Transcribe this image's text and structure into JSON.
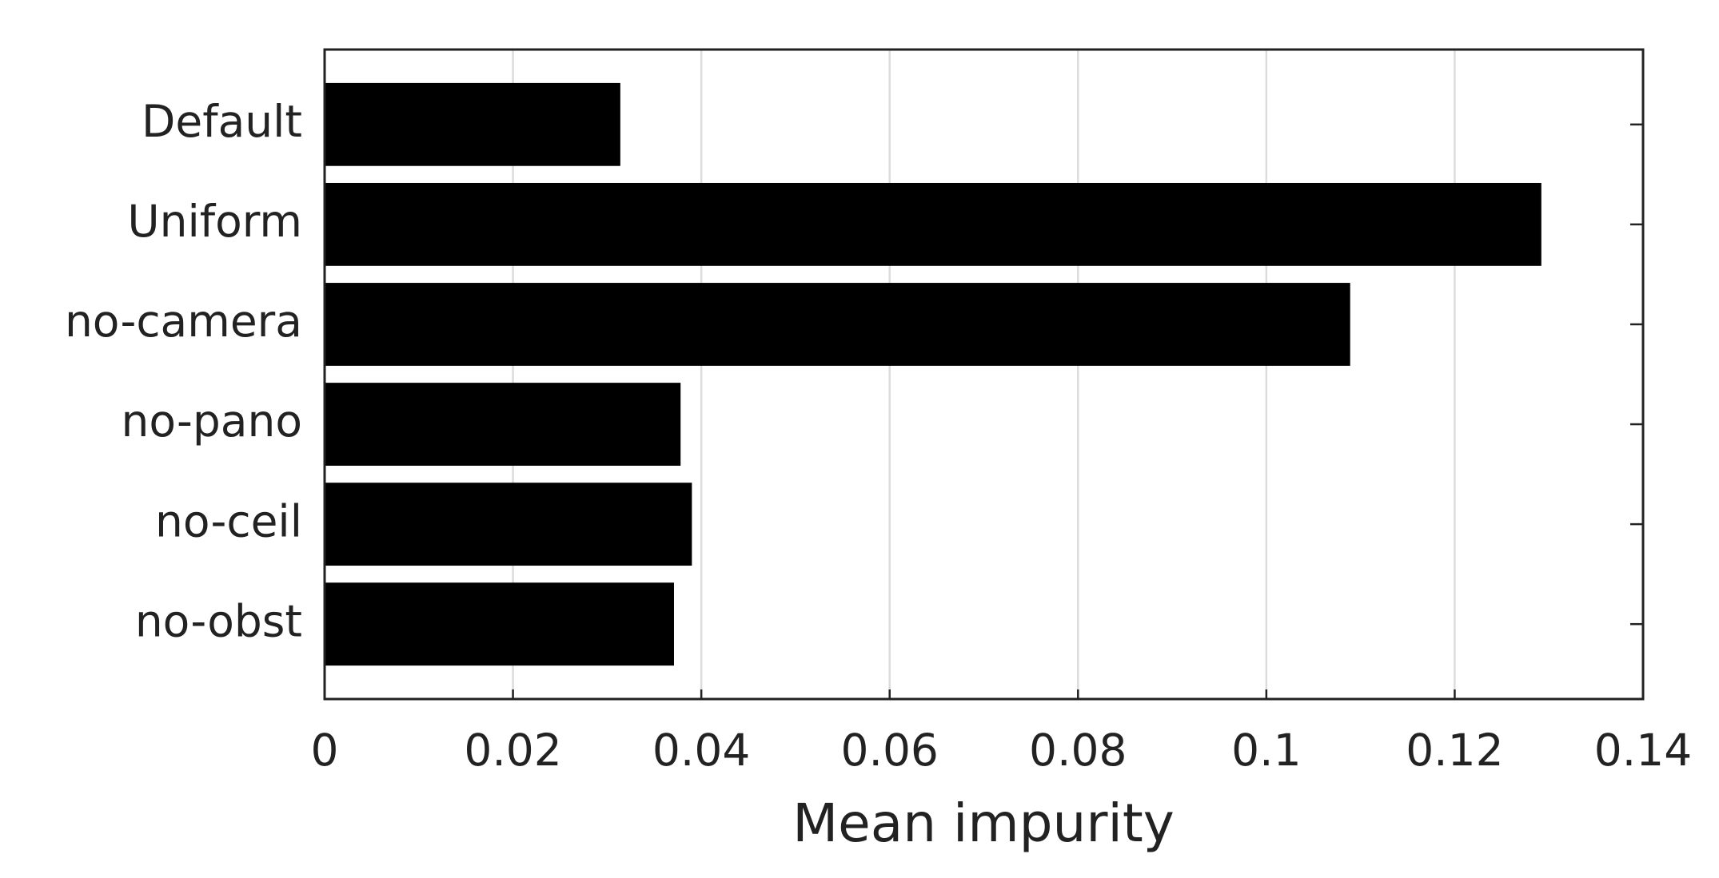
{
  "chart_data": {
    "type": "bar",
    "orientation": "horizontal",
    "xlabel": "Mean impurity",
    "categories": [
      "Default",
      "Uniform",
      "no-camera",
      "no-pano",
      "no-ceil",
      "no-obst"
    ],
    "values": [
      0.0314,
      0.1292,
      0.1089,
      0.0378,
      0.039,
      0.0371
    ],
    "color": "#000000",
    "xlim": [
      0,
      0.14
    ],
    "xticks": [
      0,
      0.02,
      0.04,
      0.06,
      0.08,
      0.1,
      0.12,
      0.14
    ],
    "grid": true
  }
}
